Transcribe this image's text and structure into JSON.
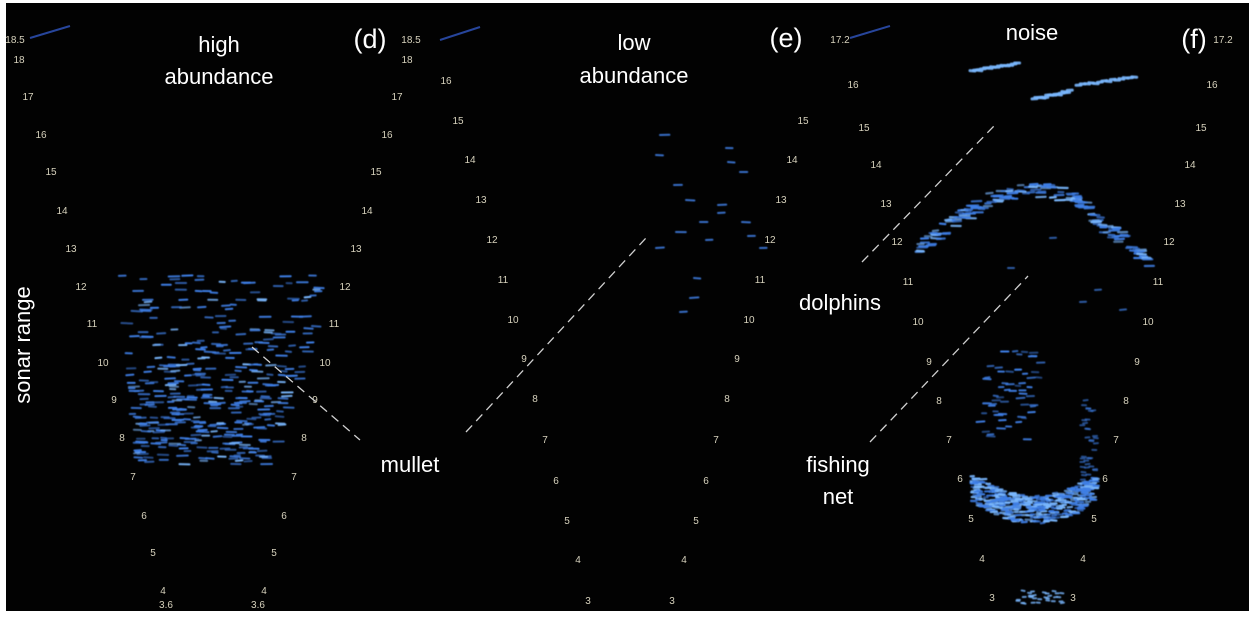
{
  "panels": [
    {
      "letter": "(d)",
      "title_line1": "high",
      "title_line2": "abundance",
      "range_left": [
        "18.5",
        "18",
        "17",
        "16",
        "15",
        "14",
        "13",
        "12",
        "11",
        "10",
        "9",
        "8",
        "7",
        "6",
        "5",
        "4",
        "3.6"
      ],
      "range_right": [
        "18.5",
        "18",
        "17",
        "16",
        "15",
        "14",
        "13",
        "12",
        "11",
        "10",
        "9",
        "8",
        "7",
        "6",
        "5",
        "4",
        "3.6"
      ]
    },
    {
      "letter": "(e)",
      "title_line1": "low",
      "title_line2": "abundance",
      "range_left": [
        "16",
        "15",
        "14",
        "13",
        "12",
        "11",
        "10",
        "9",
        "8",
        "7",
        "6",
        "5",
        "4",
        "3"
      ],
      "range_right": [
        "15",
        "14",
        "13",
        "12",
        "11",
        "10",
        "9",
        "8",
        "7",
        "6",
        "5",
        "4",
        "3"
      ]
    },
    {
      "letter": "(f)",
      "title": "noise",
      "range_left": [
        "17.2",
        "16",
        "15",
        "14",
        "13",
        "12",
        "11",
        "10",
        "9",
        "8",
        "7",
        "6",
        "5",
        "4",
        "3"
      ],
      "range_right": [
        "17.2",
        "16",
        "15",
        "14",
        "13",
        "12",
        "11",
        "10",
        "9",
        "8",
        "7",
        "6",
        "5",
        "4",
        "3"
      ]
    }
  ],
  "annotations": {
    "y_axis": "sonar range",
    "mullet": "mullet",
    "dolphins": "dolphins",
    "fishing_net_line1": "fishing",
    "fishing_net_line2": "net"
  },
  "colors": {
    "background": "#020202",
    "echo": "#3f7fe6",
    "echo_bright": "#7ab8ff",
    "tick_text": "#d7d2bd",
    "label_text": "#ffffff"
  }
}
